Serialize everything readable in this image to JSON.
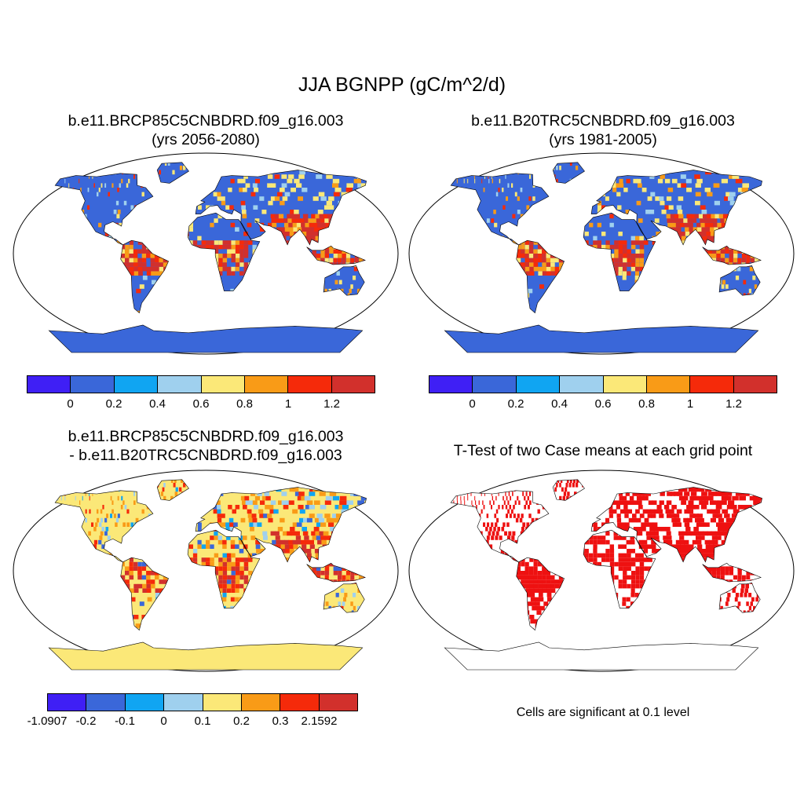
{
  "title": "JJA BGNPP (gC/m^2/d)",
  "panels": [
    {
      "title_line1": "b.e11.BRCP85C5CNBDRD.f09_g16.003",
      "title_line2": "(yrs 2056-2080)"
    },
    {
      "title_line1": "b.e11.B20TRC5CNBDRD.f09_g16.003",
      "title_line2": "(yrs 1981-2005)"
    },
    {
      "title_line1": "b.e11.BRCP85C5CNBDRD.f09_g16.003",
      "title_line2": "- b.e11.B20TRC5CNBDRD.f09_g16.003"
    },
    {
      "title_line1": "T-Test of two Case means at each grid point"
    }
  ],
  "colorbars": {
    "absolute": {
      "colors": [
        "#3f1ff5",
        "#3a67d9",
        "#10a5f2",
        "#9fd0ee",
        "#fbe878",
        "#f99b17",
        "#f52a0a",
        "#d2302c"
      ],
      "tick_labels": [
        "0",
        "0.2",
        "0.4",
        "0.6",
        "0.8",
        "1",
        "1.2"
      ]
    },
    "difference": {
      "colors": [
        "#3f1ff5",
        "#3a67d9",
        "#10a5f2",
        "#9fd0ee",
        "#fbe878",
        "#f99b17",
        "#f52a0a",
        "#d2302c"
      ],
      "tick_labels": [
        "-1.0907",
        "-0.2",
        "-0.1",
        "0",
        "0.1",
        "0.2",
        "0.3",
        "2.1592"
      ]
    }
  },
  "significance_note": "Cells are significant at 0.1 level",
  "significance_color": "#ee1111",
  "land_colors": {
    "panel1": "#3a67d9",
    "panel2": "#3a67d9",
    "panel3": "#fbe878",
    "panel4": "#ffffff"
  }
}
